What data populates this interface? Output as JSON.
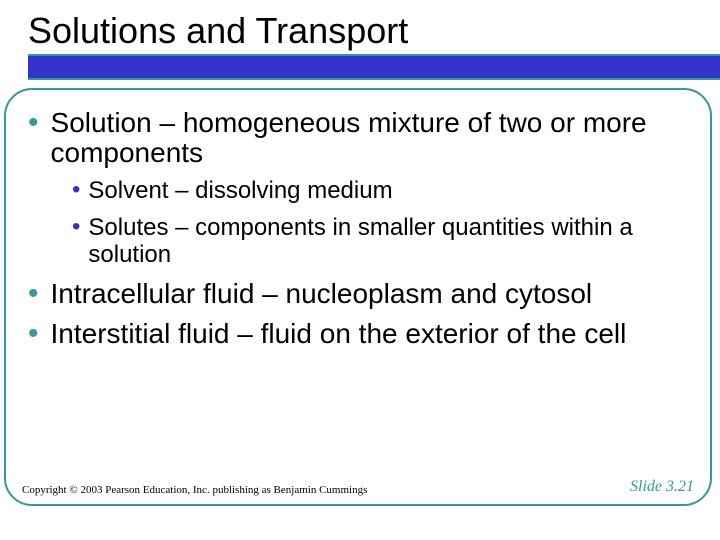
{
  "colors": {
    "accent_teal": "#339999",
    "accent_blue": "#3333cc",
    "text": "#000000",
    "background": "#ffffff"
  },
  "typography": {
    "title_fontsize": 36,
    "lvl1_fontsize": 28,
    "lvl2_fontsize": 24,
    "footer_fontsize": 11,
    "slidenum_fontsize": 16
  },
  "title": "Solutions and Transport",
  "bullets": {
    "b1": "Solution – homogeneous mixture of two or more components",
    "b1a": "Solvent – dissolving medium",
    "b1b": "Solutes – components in smaller quantities within a solution",
    "b2": "Intracellular fluid – nucleoplasm and cytosol",
    "b3": "Interstitial fluid – fluid on the exterior of the cell"
  },
  "footer": {
    "copyright": "Copyright © 2003 Pearson Education, Inc. publishing as Benjamin Cummings",
    "slidenum": "Slide 3.21"
  }
}
